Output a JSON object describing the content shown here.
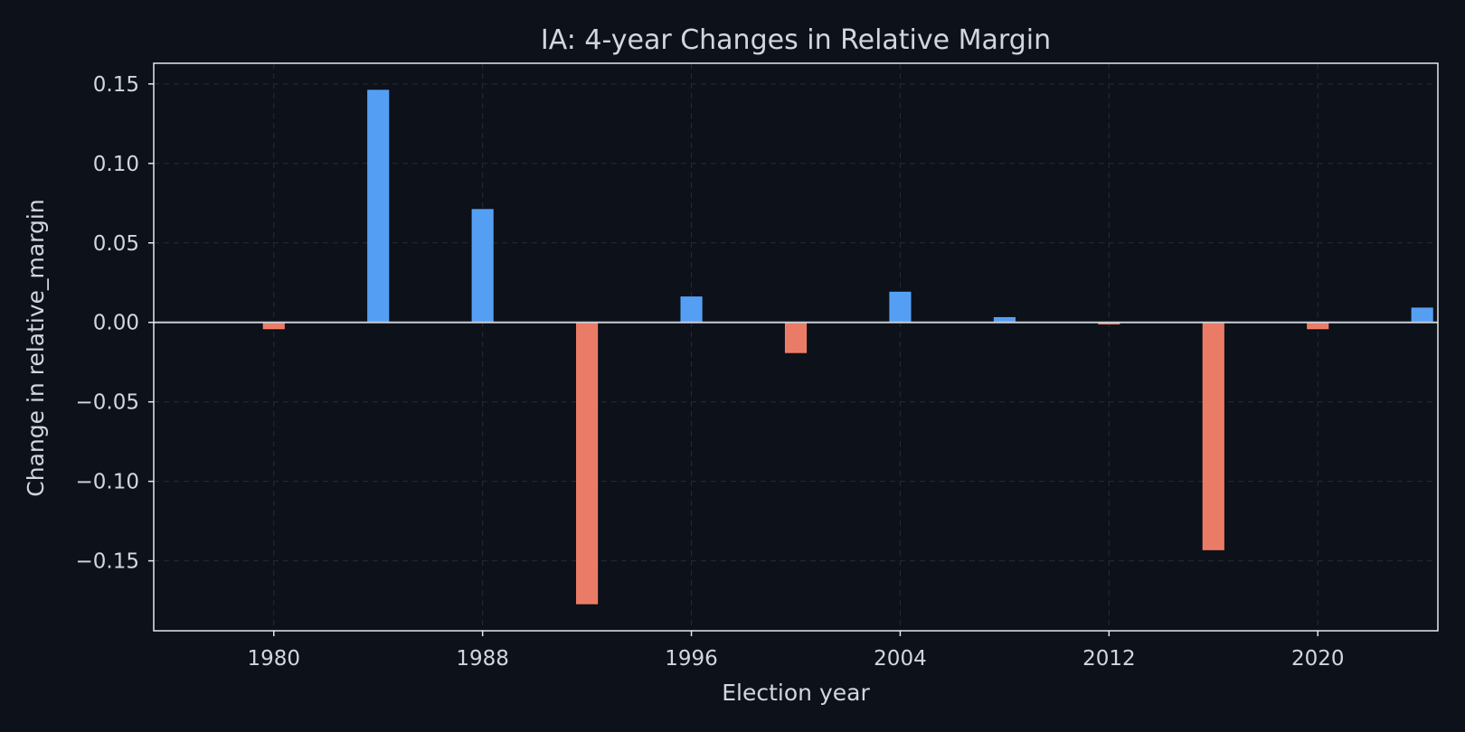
{
  "chart_data": {
    "type": "bar",
    "title": "IA: 4-year Changes in Relative Margin",
    "xlabel": "Election year",
    "ylabel": "Change in relative_margin",
    "x": [
      1980,
      1984,
      1988,
      1992,
      1996,
      2000,
      2004,
      2008,
      2012,
      2016,
      2020,
      2024
    ],
    "values": [
      -0.004,
      0.146,
      0.071,
      -0.177,
      0.016,
      -0.019,
      0.019,
      0.003,
      -0.001,
      -0.143,
      -0.004,
      0.009
    ],
    "xlim": [
      1975.4,
      2024.6
    ],
    "ylim": [
      -0.194,
      0.163
    ],
    "xticks": [
      1980,
      1988,
      1996,
      2004,
      2012,
      2020
    ],
    "xtick_labels": [
      "1980",
      "1988",
      "1996",
      "2004",
      "2012",
      "2020"
    ],
    "yticks": [
      0.15,
      0.1,
      0.05,
      0.0,
      -0.05,
      -0.1,
      -0.15
    ],
    "ytick_labels": [
      "0.15",
      "0.10",
      "0.05",
      "0.00",
      "−0.05",
      "−0.10",
      "−0.15"
    ],
    "grid": true,
    "colors": {
      "background": "#0d1119",
      "positive": "#58a6ff",
      "negative": "#f7826a",
      "axes": "#e6e8ec",
      "grid": "#262c36",
      "text": "#d2d6de"
    }
  }
}
